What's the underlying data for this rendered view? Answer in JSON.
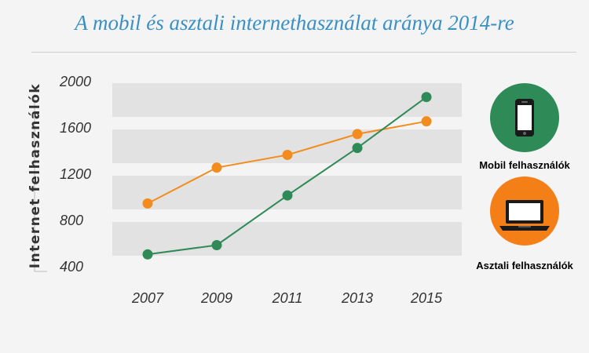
{
  "chart_data": {
    "type": "line",
    "title": "A mobil és asztali internethasználat aránya 2014-re",
    "ylabel": "Internet felhasználók",
    "xlabel": "",
    "categories": [
      "2007",
      "2009",
      "2011",
      "2013",
      "2015"
    ],
    "ylim": [
      400,
      2000
    ],
    "yticks": [
      400,
      800,
      1200,
      1600,
      2000
    ],
    "grid": "alternating horizontal bands",
    "legend_placement": "right",
    "series": [
      {
        "name": "Mobil felhasználók",
        "color": "#2e8b57",
        "icon": "smartphone-icon",
        "values": [
          520,
          600,
          1030,
          1440,
          1880
        ]
      },
      {
        "name": "Asztali felhasználók",
        "color": "#f28c1e",
        "icon": "laptop-icon",
        "values": [
          960,
          1270,
          1380,
          1560,
          1670
        ]
      }
    ]
  }
}
